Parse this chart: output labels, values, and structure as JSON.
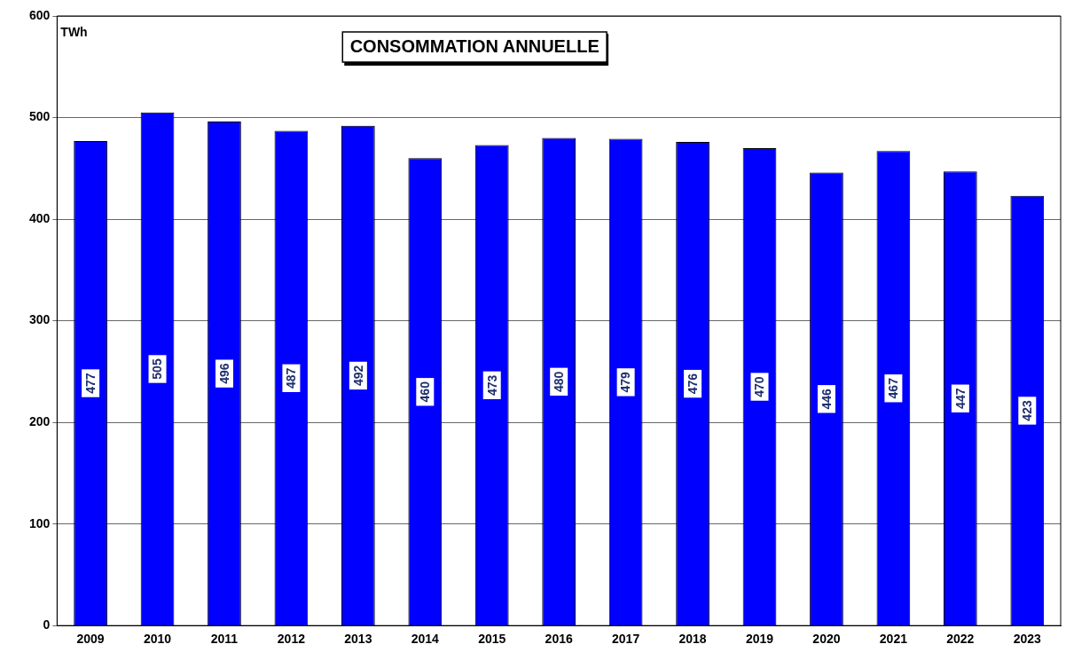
{
  "chart_data": {
    "type": "bar",
    "title": "CONSOMMATION ANNUELLE",
    "ylabel": "TWh",
    "categories": [
      "2009",
      "2010",
      "2011",
      "2012",
      "2013",
      "2014",
      "2015",
      "2016",
      "2017",
      "2018",
      "2019",
      "2020",
      "2021",
      "2022",
      "2023"
    ],
    "values": [
      477,
      505,
      496,
      487,
      492,
      460,
      473,
      480,
      479,
      476,
      470,
      446,
      467,
      447,
      423
    ],
    "color": "#0000ff",
    "ylim": [
      0,
      600
    ],
    "yticks": [
      0,
      100,
      200,
      300,
      400,
      500,
      600
    ],
    "grid": "y",
    "legend": false,
    "data_labels": true
  }
}
